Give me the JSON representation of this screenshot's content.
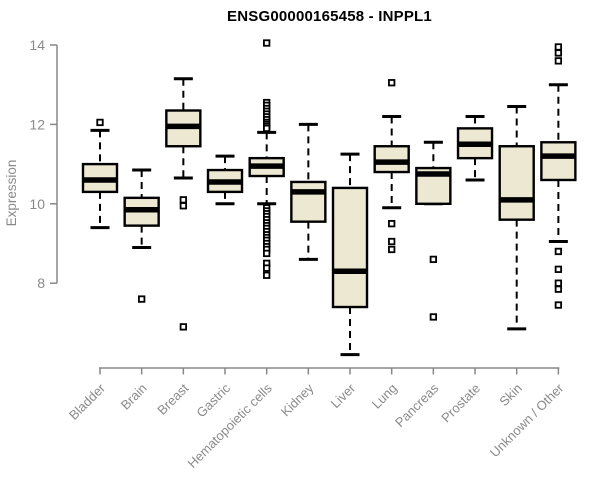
{
  "chart_data": {
    "type": "boxplot",
    "title": "ENSG00000165458 - INPPL1",
    "ylabel": "Expression",
    "xlabel": "",
    "yticks": [
      8,
      10,
      12,
      14
    ],
    "ylim": [
      5.8,
      14.2
    ],
    "grid": false,
    "legend": "none",
    "colors": {
      "box_fill": "#EDE8D1",
      "box_stroke": "#000000",
      "median": "#000000",
      "whisker": "#000000",
      "axis": "#888888",
      "tick_label": "#8a8a8a",
      "title": "#000000"
    },
    "categories": [
      {
        "label": "Bladder",
        "whisker_low": 9.4,
        "q1": 10.3,
        "median": 10.6,
        "q3": 11.0,
        "whisker_high": 11.85,
        "outliers": [
          12.05
        ]
      },
      {
        "label": "Brain",
        "whisker_low": 8.9,
        "q1": 9.45,
        "median": 9.85,
        "q3": 10.15,
        "whisker_high": 10.85,
        "outliers": [
          7.6
        ]
      },
      {
        "label": "Breast",
        "whisker_low": 10.65,
        "q1": 11.45,
        "median": 11.95,
        "q3": 12.35,
        "whisker_high": 13.15,
        "outliers": [
          10.1,
          9.95,
          6.9
        ]
      },
      {
        "label": "Gastric",
        "whisker_low": 10.0,
        "q1": 10.3,
        "median": 10.55,
        "q3": 10.85,
        "whisker_high": 11.2,
        "outliers": []
      },
      {
        "label": "Hematopoietic cells",
        "whisker_low": 10.0,
        "q1": 10.7,
        "median": 10.95,
        "q3": 11.15,
        "whisker_high": 11.8,
        "outliers": [
          14.05,
          12.55,
          12.48,
          12.4,
          12.33,
          12.26,
          12.19,
          12.12,
          12.05,
          12.0,
          11.95,
          11.9,
          9.9,
          9.82,
          9.75,
          9.68,
          9.6,
          9.52,
          9.45,
          9.38,
          9.3,
          9.22,
          9.15,
          9.08,
          9.0,
          8.92,
          8.85,
          8.75,
          8.5,
          8.38,
          8.2
        ]
      },
      {
        "label": "Kidney",
        "whisker_low": 8.6,
        "q1": 9.55,
        "median": 10.3,
        "q3": 10.55,
        "whisker_high": 12.0,
        "outliers": []
      },
      {
        "label": "Liver",
        "whisker_low": 6.2,
        "q1": 7.4,
        "median": 8.3,
        "q3": 10.4,
        "whisker_high": 11.25,
        "outliers": []
      },
      {
        "label": "Lung",
        "whisker_low": 9.9,
        "q1": 10.8,
        "median": 11.05,
        "q3": 11.45,
        "whisker_high": 12.2,
        "outliers": [
          13.05,
          9.5,
          9.05,
          8.85
        ]
      },
      {
        "label": "Pancreas",
        "whisker_low": 10.0,
        "q1": 10.0,
        "median": 10.75,
        "q3": 10.9,
        "whisker_high": 11.55,
        "outliers": [
          8.6,
          7.15
        ]
      },
      {
        "label": "Prostate",
        "whisker_low": 10.6,
        "q1": 11.15,
        "median": 11.5,
        "q3": 11.9,
        "whisker_high": 12.2,
        "outliers": []
      },
      {
        "label": "Skin",
        "whisker_low": 6.85,
        "q1": 9.6,
        "median": 10.1,
        "q3": 11.45,
        "whisker_high": 12.45,
        "outliers": []
      },
      {
        "label": "Unknown / Other",
        "whisker_low": 9.05,
        "q1": 10.6,
        "median": 11.2,
        "q3": 11.55,
        "whisker_high": 13.0,
        "outliers": [
          13.95,
          13.8,
          13.6,
          8.8,
          8.35,
          8.0,
          7.85,
          7.45
        ]
      }
    ]
  }
}
